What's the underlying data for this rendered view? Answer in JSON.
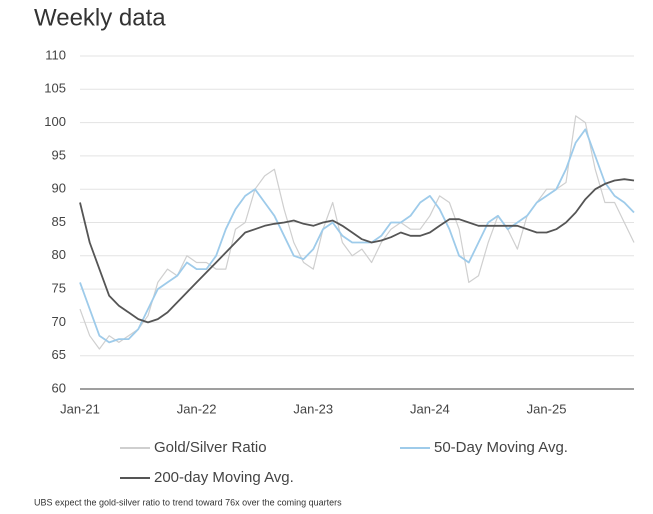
{
  "chart_data": {
    "type": "line",
    "title": "Weekly data",
    "categories": [
      "Jan-21",
      null,
      null,
      null,
      null,
      null,
      null,
      null,
      null,
      null,
      null,
      null,
      "Jan-22",
      null,
      null,
      null,
      null,
      null,
      null,
      null,
      null,
      null,
      null,
      null,
      "Jan-23",
      null,
      null,
      null,
      null,
      null,
      null,
      null,
      null,
      null,
      null,
      null,
      "Jan-24",
      null,
      null,
      null,
      null,
      null,
      null,
      null,
      null,
      null,
      null,
      null,
      "Jan-25",
      null,
      null,
      null,
      null,
      null,
      null,
      null,
      null,
      null
    ],
    "series": [
      {
        "name": "Gold/Silver Ratio",
        "color": "#cfcfcf",
        "values": [
          72,
          68,
          66,
          68,
          67,
          68,
          69,
          71,
          76,
          78,
          77,
          80,
          79,
          79,
          78,
          78,
          84,
          85,
          90,
          92,
          93,
          87,
          82,
          79,
          78,
          84,
          88,
          82,
          80,
          81,
          79,
          82,
          84,
          85,
          84,
          84,
          86,
          89,
          88,
          84,
          76,
          77,
          82,
          86,
          84,
          81,
          86,
          88,
          90,
          90,
          91,
          101,
          100,
          93,
          88,
          88,
          85,
          82
        ]
      },
      {
        "name": "50-Day Moving Avg.",
        "color": "#9ecbea",
        "values": [
          76,
          72,
          68,
          67,
          67.5,
          67.5,
          69,
          72,
          75,
          76,
          77,
          79,
          78,
          78,
          80,
          84,
          87,
          89,
          90,
          88,
          86,
          83,
          80,
          79.5,
          81,
          84,
          85,
          83,
          82,
          82,
          82,
          83,
          85,
          85,
          86,
          88,
          89,
          87,
          84,
          80,
          79,
          82,
          85,
          86,
          84,
          85,
          86,
          88,
          89,
          90,
          93,
          97,
          99,
          95,
          91,
          89,
          88,
          86.5
        ]
      },
      {
        "name": "200-day Moving Avg.",
        "color": "#555555",
        "values": [
          88,
          82,
          78,
          74,
          72.5,
          71.5,
          70.5,
          70,
          70.5,
          71.5,
          73,
          74.5,
          76,
          77.5,
          79,
          80.5,
          82,
          83.5,
          84,
          84.5,
          84.8,
          85,
          85.3,
          84.8,
          84.5,
          85,
          85.3,
          84.5,
          83.5,
          82.5,
          82,
          82.3,
          82.8,
          83.5,
          83,
          83,
          83.5,
          84.5,
          85.5,
          85.5,
          85,
          84.5,
          84.5,
          84.5,
          84.5,
          84.5,
          84,
          83.5,
          83.5,
          84,
          85,
          86.5,
          88.5,
          90,
          90.8,
          91.3,
          91.5,
          91.3
        ]
      }
    ],
    "ylim": [
      60,
      110
    ],
    "yticks": [
      60,
      65,
      70,
      75,
      80,
      85,
      90,
      95,
      100,
      105,
      110
    ],
    "grid": true,
    "caption": "UBS expect the gold-silver ratio to trend toward 76x over the coming quarters"
  }
}
